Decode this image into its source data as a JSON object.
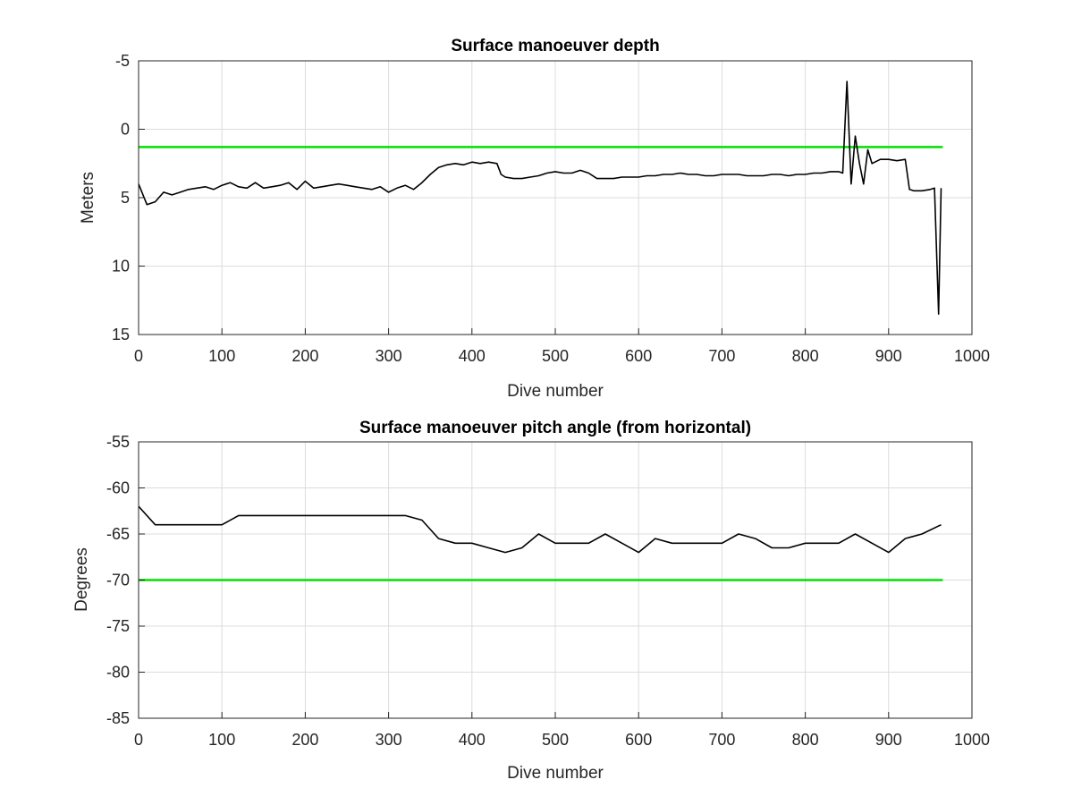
{
  "chart_data": [
    {
      "type": "line",
      "title": "Surface manoeuver depth",
      "xlabel": "Dive number",
      "ylabel": "Meters",
      "xlim": [
        0,
        1000
      ],
      "ylim": [
        -5,
        15
      ],
      "y_reversed": true,
      "xticks": [
        "0",
        "100",
        "200",
        "300",
        "400",
        "500",
        "600",
        "700",
        "800",
        "900",
        "1000"
      ],
      "yticks": [
        "-5",
        "0",
        "5",
        "10",
        "15"
      ],
      "grid": true,
      "threshold": {
        "value": 1.3,
        "x_range": [
          0,
          965
        ],
        "color": "#00e000"
      },
      "series": [
        {
          "color": "#000000",
          "x": [
            0,
            10,
            20,
            30,
            40,
            50,
            60,
            70,
            80,
            90,
            100,
            110,
            120,
            130,
            140,
            150,
            160,
            170,
            180,
            190,
            200,
            210,
            220,
            230,
            240,
            250,
            260,
            270,
            280,
            290,
            300,
            310,
            320,
            330,
            340,
            350,
            360,
            370,
            380,
            390,
            400,
            410,
            420,
            430,
            435,
            440,
            450,
            460,
            470,
            480,
            490,
            500,
            510,
            520,
            530,
            540,
            550,
            560,
            570,
            580,
            590,
            600,
            610,
            620,
            630,
            640,
            650,
            660,
            670,
            680,
            690,
            700,
            710,
            720,
            730,
            740,
            750,
            760,
            770,
            780,
            790,
            800,
            810,
            820,
            830,
            840,
            845,
            850,
            855,
            860,
            865,
            870,
            875,
            880,
            890,
            900,
            910,
            920,
            925,
            930,
            940,
            950,
            955,
            960,
            963
          ],
          "values": [
            4.0,
            5.5,
            5.3,
            4.6,
            4.8,
            4.6,
            4.4,
            4.3,
            4.2,
            4.4,
            4.1,
            3.9,
            4.2,
            4.3,
            3.9,
            4.3,
            4.2,
            4.1,
            3.9,
            4.4,
            3.8,
            4.3,
            4.2,
            4.1,
            4.0,
            4.1,
            4.2,
            4.3,
            4.4,
            4.2,
            4.6,
            4.3,
            4.1,
            4.4,
            3.9,
            3.3,
            2.8,
            2.6,
            2.5,
            2.6,
            2.4,
            2.5,
            2.4,
            2.5,
            3.3,
            3.5,
            3.6,
            3.6,
            3.5,
            3.4,
            3.2,
            3.1,
            3.2,
            3.2,
            3.0,
            3.2,
            3.6,
            3.6,
            3.6,
            3.5,
            3.5,
            3.5,
            3.4,
            3.4,
            3.3,
            3.3,
            3.2,
            3.3,
            3.3,
            3.4,
            3.4,
            3.3,
            3.3,
            3.3,
            3.4,
            3.4,
            3.4,
            3.3,
            3.3,
            3.4,
            3.3,
            3.3,
            3.2,
            3.2,
            3.1,
            3.1,
            3.2,
            -3.5,
            4.0,
            0.5,
            2.5,
            4.0,
            1.5,
            2.5,
            2.2,
            2.2,
            2.3,
            2.2,
            4.4,
            4.5,
            4.5,
            4.4,
            4.3,
            13.5,
            4.3
          ]
        }
      ]
    },
    {
      "type": "line",
      "title": "Surface manoeuver pitch angle (from horizontal)",
      "xlabel": "Dive number",
      "ylabel": "Degrees",
      "xlim": [
        0,
        1000
      ],
      "ylim": [
        -85,
        -55
      ],
      "xticks": [
        "0",
        "100",
        "200",
        "300",
        "400",
        "500",
        "600",
        "700",
        "800",
        "900",
        "1000"
      ],
      "yticks": [
        "-55",
        "-60",
        "-65",
        "-70",
        "-75",
        "-80",
        "-85"
      ],
      "grid": true,
      "threshold": {
        "value": -70,
        "x_range": [
          0,
          965
        ],
        "color": "#00e000"
      },
      "series": [
        {
          "color": "#000000",
          "x": [
            0,
            20,
            40,
            60,
            80,
            100,
            120,
            140,
            160,
            180,
            200,
            220,
            240,
            260,
            280,
            300,
            320,
            340,
            360,
            380,
            400,
            420,
            440,
            460,
            480,
            500,
            520,
            540,
            560,
            580,
            600,
            620,
            640,
            660,
            680,
            700,
            720,
            740,
            760,
            780,
            800,
            820,
            840,
            860,
            880,
            900,
            920,
            940,
            963
          ],
          "values": [
            -62,
            -64,
            -64,
            -64,
            -64,
            -64,
            -63,
            -63,
            -63,
            -63,
            -63,
            -63,
            -63,
            -63,
            -63,
            -63,
            -63,
            -63.5,
            -65.5,
            -66,
            -66,
            -66.5,
            -67,
            -66.5,
            -65,
            -66,
            -66,
            -66,
            -65,
            -66,
            -67,
            -65.5,
            -66,
            -66,
            -66,
            -66,
            -65,
            -65.5,
            -66.5,
            -66.5,
            -66,
            -66,
            -66,
            -65,
            -66,
            -67,
            -65.5,
            -65,
            -64
          ]
        }
      ]
    }
  ]
}
